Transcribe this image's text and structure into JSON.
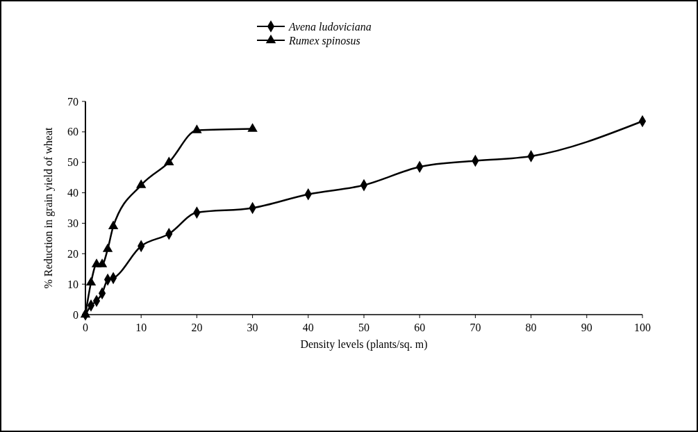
{
  "chart_data": {
    "type": "line",
    "xlabel": "Density levels (plants/sq. m)",
    "ylabel": "% Reduction in grain yield of wheat",
    "xlim": [
      0,
      100
    ],
    "xticks": [
      0,
      10,
      20,
      30,
      40,
      50,
      60,
      70,
      80,
      90,
      100
    ],
    "ylim": [
      0,
      70
    ],
    "yticks": [
      0,
      10,
      20,
      30,
      40,
      50,
      60,
      70
    ],
    "legend": "top",
    "grid": false,
    "series": [
      {
        "name": "Avena ludoviciana",
        "color": "#000000",
        "marker": "diamond",
        "x": [
          0,
          1,
          2,
          3,
          4,
          5,
          10,
          15,
          20,
          30,
          40,
          50,
          60,
          70,
          80,
          100
        ],
        "values": [
          0,
          3,
          4.5,
          7,
          11.5,
          12,
          22.5,
          26.5,
          33.5,
          35,
          39.5,
          42.5,
          48.5,
          50.5,
          52,
          63.5
        ]
      },
      {
        "name": "Rumex spinosus",
        "color": "#000000",
        "marker": "triangle",
        "x": [
          0,
          1,
          2,
          3,
          4,
          5,
          10,
          15,
          20,
          30
        ],
        "values": [
          0,
          10.5,
          16.5,
          16.5,
          21.5,
          29,
          42.5,
          50,
          60.5,
          61
        ]
      }
    ]
  }
}
